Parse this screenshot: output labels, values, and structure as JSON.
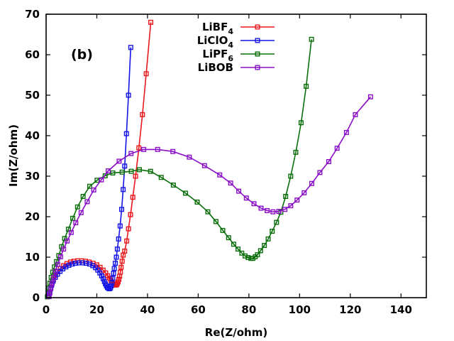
{
  "chart_data": {
    "type": "line",
    "title": "",
    "panel_label": "(b)",
    "xlabel": "Re(Z/ohm)",
    "ylabel": "Im(Z/ohm)",
    "xlim": [
      0,
      150
    ],
    "ylim": [
      0,
      70
    ],
    "xticks": [
      0,
      20,
      40,
      60,
      80,
      100,
      120,
      140
    ],
    "yticks": [
      0,
      10,
      20,
      30,
      40,
      50,
      60,
      70
    ],
    "legend_position": "top-center",
    "series": [
      {
        "name": "LiBF4",
        "label_main": "LiBF",
        "label_sub": "4",
        "color": "#e8171b",
        "points": [
          [
            1.0,
            0.3
          ],
          [
            1.3,
            1.2
          ],
          [
            1.7,
            2.3
          ],
          [
            2.2,
            3.4
          ],
          [
            2.9,
            4.5
          ],
          [
            3.7,
            5.5
          ],
          [
            4.6,
            6.4
          ],
          [
            5.7,
            7.2
          ],
          [
            6.9,
            7.9
          ],
          [
            8.2,
            8.4
          ],
          [
            9.6,
            8.8
          ],
          [
            11.0,
            9.0
          ],
          [
            12.5,
            9.1
          ],
          [
            14.0,
            9.1
          ],
          [
            15.5,
            9.0
          ],
          [
            17.0,
            8.8
          ],
          [
            18.5,
            8.5
          ],
          [
            20.0,
            8.1
          ],
          [
            21.3,
            7.5
          ],
          [
            22.5,
            6.8
          ],
          [
            23.5,
            6.1
          ],
          [
            24.3,
            5.4
          ],
          [
            25.0,
            4.8
          ],
          [
            25.6,
            4.2
          ],
          [
            26.1,
            3.8
          ],
          [
            26.6,
            3.4
          ],
          [
            27.0,
            3.2
          ],
          [
            27.4,
            3.1
          ],
          [
            27.8,
            3.2
          ],
          [
            28.1,
            3.5
          ],
          [
            28.4,
            3.9
          ],
          [
            28.7,
            4.5
          ],
          [
            29.0,
            5.3
          ],
          [
            29.3,
            6.3
          ],
          [
            29.6,
            7.5
          ],
          [
            30.0,
            9.0
          ],
          [
            30.4,
            10.5
          ],
          [
            31.0,
            11.5
          ],
          [
            31.8,
            14.0
          ],
          [
            32.5,
            17.0
          ],
          [
            33.3,
            20.5
          ],
          [
            34.2,
            24.8
          ],
          [
            35.3,
            30.0
          ],
          [
            36.6,
            37.0
          ],
          [
            38.0,
            45.2
          ],
          [
            39.5,
            55.3
          ],
          [
            41.3,
            68.0
          ]
        ]
      },
      {
        "name": "LiClO4",
        "label_main": "LiClO",
        "label_sub": "4",
        "color": "#1414e6",
        "points": [
          [
            1.0,
            0.3
          ],
          [
            1.3,
            1.1
          ],
          [
            1.7,
            2.1
          ],
          [
            2.2,
            3.1
          ],
          [
            2.8,
            4.1
          ],
          [
            3.6,
            5.0
          ],
          [
            4.5,
            5.8
          ],
          [
            5.5,
            6.5
          ],
          [
            6.6,
            7.1
          ],
          [
            7.8,
            7.6
          ],
          [
            9.0,
            8.0
          ],
          [
            10.3,
            8.3
          ],
          [
            11.6,
            8.5
          ],
          [
            13.0,
            8.6
          ],
          [
            14.4,
            8.6
          ],
          [
            15.8,
            8.5
          ],
          [
            17.2,
            8.3
          ],
          [
            18.4,
            7.9
          ],
          [
            19.5,
            7.4
          ],
          [
            20.4,
            6.8
          ],
          [
            21.2,
            6.1
          ],
          [
            21.9,
            5.4
          ],
          [
            22.5,
            4.7
          ],
          [
            23.0,
            4.0
          ],
          [
            23.4,
            3.4
          ],
          [
            23.8,
            2.9
          ],
          [
            24.2,
            2.5
          ],
          [
            24.6,
            2.3
          ],
          [
            25.0,
            2.2
          ],
          [
            25.4,
            2.4
          ],
          [
            25.7,
            2.9
          ],
          [
            26.0,
            3.7
          ],
          [
            26.3,
            4.8
          ],
          [
            26.6,
            6.0
          ],
          [
            26.9,
            7.2
          ],
          [
            27.3,
            8.5
          ],
          [
            27.7,
            10.0
          ],
          [
            28.1,
            12.0
          ],
          [
            28.6,
            14.5
          ],
          [
            29.2,
            17.7
          ],
          [
            29.8,
            21.8
          ],
          [
            30.4,
            26.7
          ],
          [
            31.0,
            32.5
          ],
          [
            31.7,
            40.5
          ],
          [
            32.5,
            50.0
          ],
          [
            33.4,
            61.8
          ]
        ]
      },
      {
        "name": "LiPF6",
        "label_main": "LiPF",
        "label_sub": "6",
        "color": "#0a6e0a",
        "points": [
          [
            0.5,
            0.2
          ],
          [
            0.8,
            1.2
          ],
          [
            1.1,
            2.4
          ],
          [
            1.5,
            3.6
          ],
          [
            2.0,
            5.0
          ],
          [
            2.6,
            6.3
          ],
          [
            3.3,
            7.6
          ],
          [
            4.1,
            8.9
          ],
          [
            5.0,
            10.4
          ],
          [
            6.1,
            12.6
          ],
          [
            7.3,
            14.6
          ],
          [
            8.8,
            16.9
          ],
          [
            10.5,
            19.6
          ],
          [
            12.4,
            22.4
          ],
          [
            14.6,
            25.0
          ],
          [
            17.2,
            27.5
          ],
          [
            20.1,
            29.0
          ],
          [
            23.3,
            30.1
          ],
          [
            26.3,
            30.8
          ],
          [
            30.0,
            31.0
          ],
          [
            33.6,
            31.2
          ],
          [
            36.8,
            31.6
          ],
          [
            41.2,
            31.2
          ],
          [
            45.4,
            29.7
          ],
          [
            50.2,
            27.8
          ],
          [
            55.0,
            25.8
          ],
          [
            59.6,
            23.6
          ],
          [
            63.8,
            21.2
          ],
          [
            67.0,
            18.8
          ],
          [
            69.7,
            16.6
          ],
          [
            72.0,
            14.8
          ],
          [
            74.0,
            13.2
          ],
          [
            75.7,
            12.0
          ],
          [
            77.2,
            11.0
          ],
          [
            78.5,
            10.3
          ],
          [
            79.7,
            9.9
          ],
          [
            80.8,
            9.7
          ],
          [
            81.6,
            9.7
          ],
          [
            82.5,
            10.1
          ],
          [
            83.4,
            10.6
          ],
          [
            84.6,
            11.6
          ],
          [
            86.1,
            12.9
          ],
          [
            87.6,
            14.5
          ],
          [
            89.2,
            16.4
          ],
          [
            90.9,
            18.6
          ],
          [
            92.6,
            21.1
          ],
          [
            94.5,
            25.0
          ],
          [
            96.5,
            30.0
          ],
          [
            98.5,
            35.9
          ],
          [
            100.6,
            43.2
          ],
          [
            102.6,
            52.2
          ],
          [
            104.7,
            63.8
          ]
        ]
      },
      {
        "name": "LiBOB",
        "label_main": "LiBOB",
        "label_sub": "",
        "color": "#8a0fc6",
        "points": [
          [
            1.2,
            0.3
          ],
          [
            1.5,
            1.2
          ],
          [
            1.9,
            2.4
          ],
          [
            2.4,
            3.6
          ],
          [
            3.0,
            5.0
          ],
          [
            3.7,
            6.5
          ],
          [
            4.6,
            8.2
          ],
          [
            5.7,
            10.1
          ],
          [
            6.9,
            12.0
          ],
          [
            8.3,
            14.0
          ],
          [
            9.9,
            16.1
          ],
          [
            11.7,
            18.5
          ],
          [
            13.8,
            21.0
          ],
          [
            16.2,
            23.7
          ],
          [
            18.8,
            26.6
          ],
          [
            21.8,
            29.1
          ],
          [
            24.5,
            31.3
          ],
          [
            28.8,
            33.7
          ],
          [
            33.5,
            35.6
          ],
          [
            38.5,
            36.6
          ],
          [
            44.0,
            36.6
          ],
          [
            50.0,
            36.1
          ],
          [
            56.5,
            34.7
          ],
          [
            62.5,
            32.6
          ],
          [
            68.5,
            30.3
          ],
          [
            72.8,
            28.3
          ],
          [
            76.0,
            26.3
          ],
          [
            79.0,
            24.6
          ],
          [
            82.0,
            23.2
          ],
          [
            84.8,
            22.1
          ],
          [
            87.2,
            21.5
          ],
          [
            89.5,
            21.2
          ],
          [
            91.8,
            21.3
          ],
          [
            94.2,
            21.8
          ],
          [
            96.5,
            22.7
          ],
          [
            99.0,
            24.1
          ],
          [
            101.8,
            25.9
          ],
          [
            104.8,
            28.2
          ],
          [
            108.0,
            30.9
          ],
          [
            111.5,
            33.6
          ],
          [
            114.8,
            36.9
          ],
          [
            118.5,
            40.8
          ],
          [
            122.0,
            45.2
          ],
          [
            128.0,
            49.6
          ]
        ]
      }
    ]
  }
}
